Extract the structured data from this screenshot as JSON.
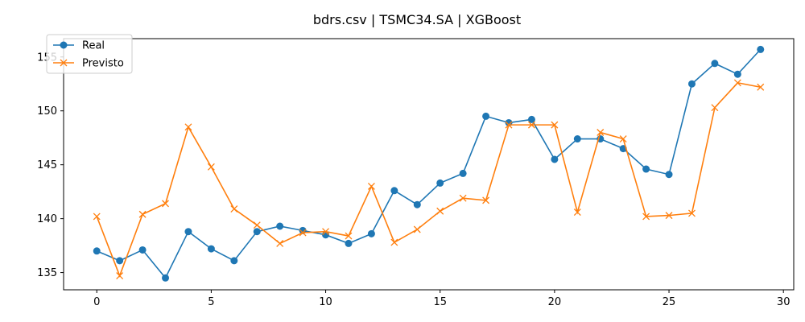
{
  "chart_data": {
    "type": "line",
    "title": "bdrs.csv | TSMC34.SA | XGBoost",
    "xlabel": "",
    "ylabel": "",
    "xlim": [
      -1.45,
      30.45
    ],
    "ylim": [
      133.4,
      156.7
    ],
    "xticks": [
      0,
      5,
      10,
      15,
      20,
      25,
      30
    ],
    "yticks": [
      135,
      140,
      145,
      150,
      155
    ],
    "grid": false,
    "legend": "upper-left",
    "x": [
      0,
      1,
      2,
      3,
      4,
      5,
      6,
      7,
      8,
      9,
      10,
      11,
      12,
      13,
      14,
      15,
      16,
      17,
      18,
      19,
      20,
      21,
      22,
      23,
      24,
      25,
      26,
      27,
      28,
      29
    ],
    "series": [
      {
        "name": "Real",
        "color": "#1f77b4",
        "marker": "circle",
        "values": [
          137.0,
          136.1,
          137.1,
          134.5,
          138.8,
          137.2,
          136.1,
          138.8,
          139.3,
          138.9,
          138.5,
          137.7,
          138.6,
          142.6,
          141.3,
          143.3,
          144.2,
          149.5,
          148.9,
          149.2,
          145.5,
          147.4,
          147.4,
          146.5,
          144.6,
          144.1,
          152.5,
          154.4,
          153.4,
          155.7
        ]
      },
      {
        "name": "Previsto",
        "color": "#ff7f0e",
        "marker": "x",
        "values": [
          140.2,
          134.7,
          140.4,
          141.4,
          148.5,
          144.8,
          140.9,
          139.4,
          137.7,
          138.7,
          138.8,
          138.4,
          143.0,
          137.8,
          139.0,
          140.7,
          141.9,
          141.7,
          148.7,
          148.7,
          148.7,
          140.6,
          148.0,
          147.4,
          140.2,
          140.3,
          140.5,
          150.3,
          152.6,
          152.2
        ]
      }
    ]
  }
}
